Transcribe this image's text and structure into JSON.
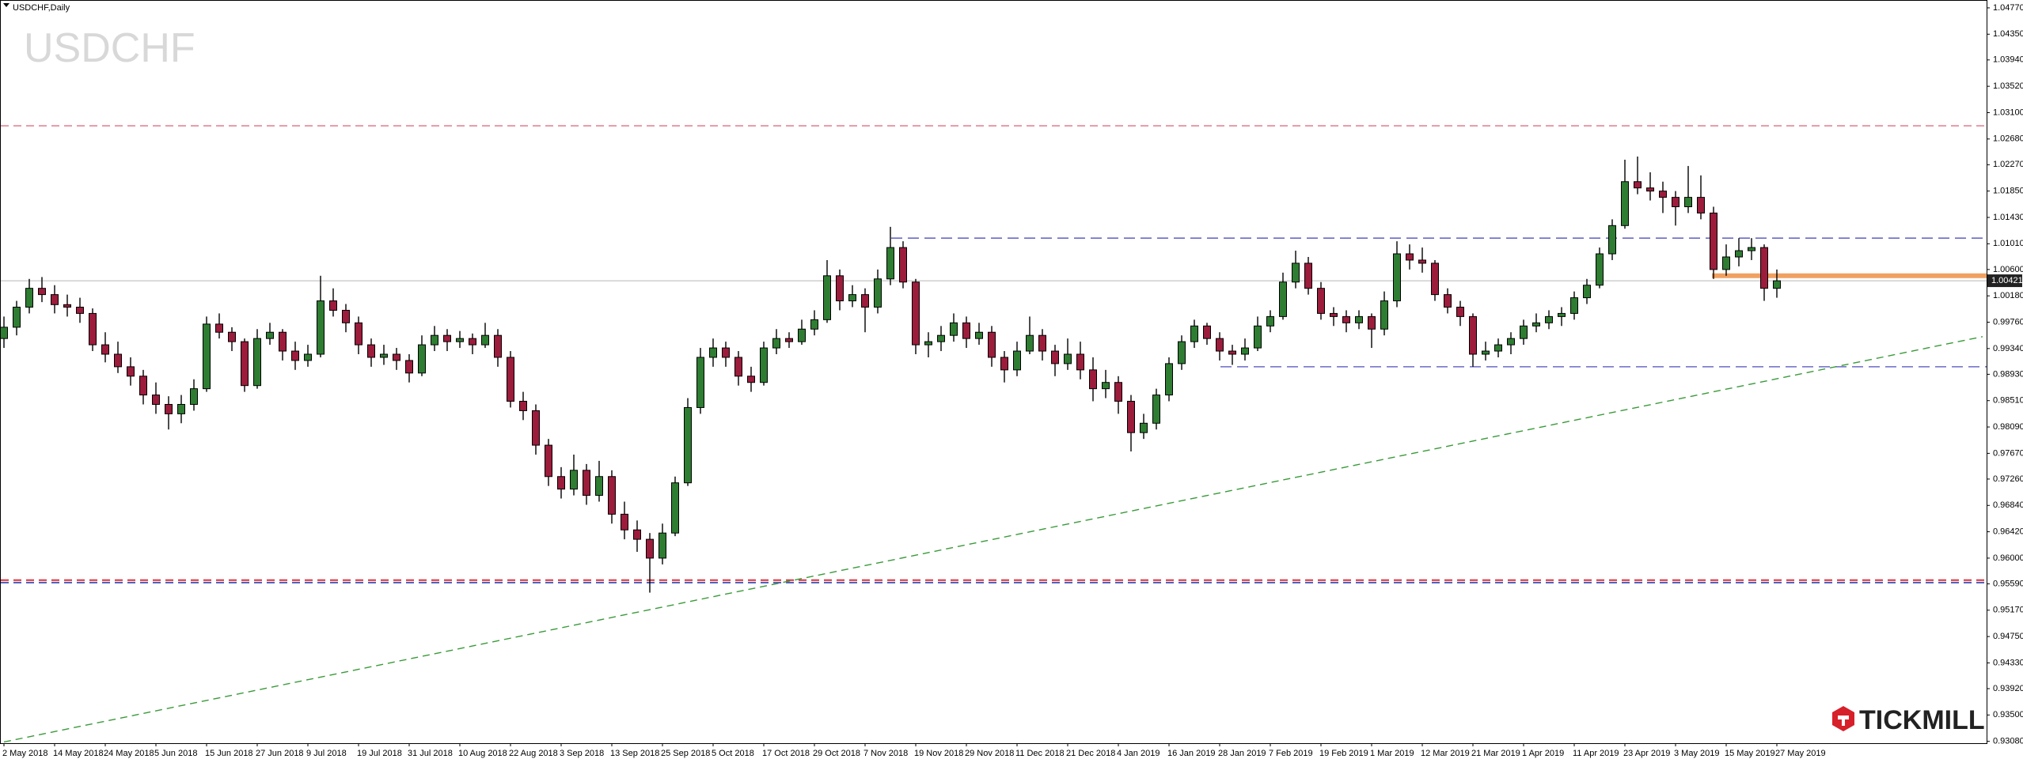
{
  "chart_data": {
    "type": "candlestick",
    "title": "USDCHF,Daily",
    "watermark": "USDCHF",
    "brand": "TICKMILL",
    "ylim": [
      0.93,
      1.0487
    ],
    "yticks": [
      {
        "value": 1.0477,
        "label": "1.04770"
      },
      {
        "value": 1.0435,
        "label": "1.04350"
      },
      {
        "value": 1.0394,
        "label": "1.03940"
      },
      {
        "value": 1.0352,
        "label": "1.03520"
      },
      {
        "value": 1.031,
        "label": "1.03100"
      },
      {
        "value": 1.0268,
        "label": "1.02680"
      },
      {
        "value": 1.0227,
        "label": "1.02270"
      },
      {
        "value": 1.0185,
        "label": "1.01850"
      },
      {
        "value": 1.0143,
        "label": "1.01430"
      },
      {
        "value": 1.0101,
        "label": "1.01010"
      },
      {
        "value": 1.006,
        "label": "1.00600"
      },
      {
        "value": 1.0018,
        "label": "1.00180"
      },
      {
        "value": 0.9976,
        "label": "0.99760"
      },
      {
        "value": 0.9934,
        "label": "0.99340"
      },
      {
        "value": 0.9893,
        "label": "0.98930"
      },
      {
        "value": 0.9851,
        "label": "0.98510"
      },
      {
        "value": 0.9809,
        "label": "0.98090"
      },
      {
        "value": 0.9767,
        "label": "0.97670"
      },
      {
        "value": 0.9726,
        "label": "0.97260"
      },
      {
        "value": 0.9684,
        "label": "0.96840"
      },
      {
        "value": 0.9642,
        "label": "0.96420"
      },
      {
        "value": 0.96,
        "label": "0.96000"
      },
      {
        "value": 0.9559,
        "label": "0.95590"
      },
      {
        "value": 0.9517,
        "label": "0.95170"
      },
      {
        "value": 0.9475,
        "label": "0.94750"
      },
      {
        "value": 0.9433,
        "label": "0.94330"
      },
      {
        "value": 0.9392,
        "label": "0.93920"
      },
      {
        "value": 0.935,
        "label": "0.93500"
      },
      {
        "value": 0.9308,
        "label": "0.93080"
      }
    ],
    "x_labels": [
      "2 May 2018",
      "14 May 2018",
      "24 May 2018",
      "5 Jun 2018",
      "15 Jun 2018",
      "27 Jun 2018",
      "9 Jul 2018",
      "19 Jul 2018",
      "31 Jul 2018",
      "10 Aug 2018",
      "22 Aug 2018",
      "3 Sep 2018",
      "13 Sep 2018",
      "25 Sep 2018",
      "5 Oct 2018",
      "17 Oct 2018",
      "29 Oct 2018",
      "7 Nov 2018",
      "19 Nov 2018",
      "29 Nov 2018",
      "11 Dec 2018",
      "21 Dec 2018",
      "4 Jan 2019",
      "16 Jan 2019",
      "28 Jan 2019",
      "7 Feb 2019",
      "19 Feb 2019",
      "1 Mar 2019",
      "12 Mar 2019",
      "21 Mar 2019",
      "1 Apr 2019",
      "11 Apr 2019",
      "23 Apr 2019",
      "3 May 2019",
      "15 May 2019",
      "27 May 2019"
    ],
    "bull_color": "#2e7d32",
    "bear_color": "#9c1c3c",
    "last_price": 1.00421,
    "levels": [
      {
        "value": 1.0289,
        "color": "#e07a8c"
      },
      {
        "value": 0.9565,
        "color": "#e0303a"
      },
      {
        "value": 0.9561,
        "color": "#4a5ab8"
      },
      {
        "value": 1.011,
        "color": "#6a6ac8"
      },
      {
        "value": 0.9905,
        "color": "#6a6ac8"
      },
      {
        "value": 1.005,
        "color": "#f0a060"
      }
    ],
    "trendline": {
      "values": [
        0.9307,
        0.9953
      ],
      "color": "#3a9a3a"
    },
    "candles": [
      [
        0.995,
        0.9985,
        0.9935,
        0.9968
      ],
      [
        0.9968,
        1.001,
        0.9955,
        1.0
      ],
      [
        1.0,
        1.0045,
        0.999,
        1.003
      ],
      [
        1.003,
        1.0048,
        1.0008,
        1.002
      ],
      [
        1.002,
        1.0035,
        0.999,
        1.0004
      ],
      [
        1.0004,
        1.002,
        0.9985,
        1.0
      ],
      [
        1.0,
        1.0015,
        0.9975,
        0.999
      ],
      [
        0.999,
        0.9998,
        0.993,
        0.994
      ],
      [
        0.994,
        0.996,
        0.9912,
        0.9925
      ],
      [
        0.9925,
        0.9945,
        0.9895,
        0.9905
      ],
      [
        0.9905,
        0.992,
        0.9875,
        0.989
      ],
      [
        0.989,
        0.99,
        0.9845,
        0.986
      ],
      [
        0.986,
        0.988,
        0.983,
        0.9845
      ],
      [
        0.9845,
        0.9858,
        0.9805,
        0.983
      ],
      [
        0.983,
        0.986,
        0.9815,
        0.9845
      ],
      [
        0.9845,
        0.9885,
        0.9835,
        0.987
      ],
      [
        0.987,
        0.9985,
        0.9865,
        0.9973
      ],
      [
        0.9973,
        0.999,
        0.995,
        0.996
      ],
      [
        0.996,
        0.9968,
        0.993,
        0.9945
      ],
      [
        0.9945,
        0.995,
        0.9865,
        0.9875
      ],
      [
        0.9875,
        0.9965,
        0.987,
        0.995
      ],
      [
        0.995,
        0.9975,
        0.994,
        0.996
      ],
      [
        0.996,
        0.9965,
        0.9915,
        0.993
      ],
      [
        0.993,
        0.9945,
        0.99,
        0.9915
      ],
      [
        0.9915,
        0.994,
        0.9905,
        0.9925
      ],
      [
        0.9925,
        1.005,
        0.992,
        1.001
      ],
      [
        1.001,
        1.003,
        0.9985,
        0.9995
      ],
      [
        0.9995,
        1.0005,
        0.996,
        0.9975
      ],
      [
        0.9975,
        0.9985,
        0.9925,
        0.994
      ],
      [
        0.994,
        0.995,
        0.9905,
        0.992
      ],
      [
        0.992,
        0.994,
        0.9908,
        0.9925
      ],
      [
        0.9925,
        0.9935,
        0.99,
        0.9915
      ],
      [
        0.9915,
        0.9925,
        0.988,
        0.9895
      ],
      [
        0.9895,
        0.9955,
        0.989,
        0.994
      ],
      [
        0.994,
        0.997,
        0.993,
        0.9955
      ],
      [
        0.9955,
        0.9965,
        0.993,
        0.9945
      ],
      [
        0.9945,
        0.9962,
        0.9935,
        0.995
      ],
      [
        0.995,
        0.9958,
        0.9925,
        0.994
      ],
      [
        0.994,
        0.9975,
        0.9935,
        0.9955
      ],
      [
        0.9955,
        0.9965,
        0.9905,
        0.992
      ],
      [
        0.992,
        0.993,
        0.984,
        0.985
      ],
      [
        0.985,
        0.9865,
        0.982,
        0.9835
      ],
      [
        0.9835,
        0.9845,
        0.9765,
        0.978
      ],
      [
        0.978,
        0.979,
        0.9715,
        0.973
      ],
      [
        0.973,
        0.9745,
        0.9695,
        0.971
      ],
      [
        0.971,
        0.9765,
        0.97,
        0.974
      ],
      [
        0.974,
        0.975,
        0.9685,
        0.97
      ],
      [
        0.97,
        0.9755,
        0.969,
        0.973
      ],
      [
        0.973,
        0.974,
        0.9655,
        0.967
      ],
      [
        0.967,
        0.969,
        0.963,
        0.9645
      ],
      [
        0.9645,
        0.966,
        0.961,
        0.963
      ],
      [
        0.963,
        0.964,
        0.9545,
        0.96
      ],
      [
        0.96,
        0.9655,
        0.959,
        0.964
      ],
      [
        0.964,
        0.973,
        0.9635,
        0.972
      ],
      [
        0.972,
        0.9855,
        0.9715,
        0.984
      ],
      [
        0.984,
        0.9935,
        0.983,
        0.992
      ],
      [
        0.992,
        0.995,
        0.9905,
        0.9935
      ],
      [
        0.9935,
        0.9945,
        0.9905,
        0.992
      ],
      [
        0.992,
        0.993,
        0.9875,
        0.989
      ],
      [
        0.989,
        0.9905,
        0.9865,
        0.988
      ],
      [
        0.988,
        0.9945,
        0.9875,
        0.9935
      ],
      [
        0.9935,
        0.9965,
        0.9925,
        0.995
      ],
      [
        0.995,
        0.996,
        0.9935,
        0.9945
      ],
      [
        0.9945,
        0.998,
        0.994,
        0.9965
      ],
      [
        0.9965,
        0.9995,
        0.9955,
        0.998
      ],
      [
        0.998,
        1.0075,
        0.9975,
        1.005
      ],
      [
        1.005,
        1.006,
        0.9995,
        1.001
      ],
      [
        1.001,
        1.0035,
        1.0,
        1.002
      ],
      [
        1.002,
        1.003,
        0.996,
        1.0
      ],
      [
        1.0,
        1.006,
        0.999,
        1.0045
      ],
      [
        1.0045,
        1.0128,
        1.0035,
        1.0095
      ],
      [
        1.0095,
        1.0105,
        1.003,
        1.004
      ],
      [
        1.004,
        1.0045,
        0.9925,
        0.994
      ],
      [
        0.994,
        0.996,
        0.992,
        0.9945
      ],
      [
        0.9945,
        0.997,
        0.993,
        0.9955
      ],
      [
        0.9955,
        0.999,
        0.9945,
        0.9975
      ],
      [
        0.9975,
        0.9985,
        0.9935,
        0.995
      ],
      [
        0.995,
        0.9975,
        0.994,
        0.996
      ],
      [
        0.996,
        0.997,
        0.9905,
        0.992
      ],
      [
        0.992,
        0.993,
        0.988,
        0.99
      ],
      [
        0.99,
        0.9945,
        0.989,
        0.993
      ],
      [
        0.993,
        0.9985,
        0.9925,
        0.9955
      ],
      [
        0.9955,
        0.9965,
        0.9915,
        0.993
      ],
      [
        0.993,
        0.994,
        0.989,
        0.991
      ],
      [
        0.991,
        0.995,
        0.99,
        0.9925
      ],
      [
        0.9925,
        0.9945,
        0.9885,
        0.99
      ],
      [
        0.99,
        0.992,
        0.985,
        0.987
      ],
      [
        0.987,
        0.99,
        0.9855,
        0.988
      ],
      [
        0.988,
        0.989,
        0.983,
        0.985
      ],
      [
        0.985,
        0.986,
        0.977,
        0.98
      ],
      [
        0.98,
        0.983,
        0.979,
        0.9815
      ],
      [
        0.9815,
        0.987,
        0.9805,
        0.986
      ],
      [
        0.986,
        0.992,
        0.985,
        0.991
      ],
      [
        0.991,
        0.9955,
        0.99,
        0.9945
      ],
      [
        0.9945,
        0.998,
        0.9935,
        0.997
      ],
      [
        0.997,
        0.9975,
        0.994,
        0.995
      ],
      [
        0.995,
        0.996,
        0.9915,
        0.993
      ],
      [
        0.993,
        0.994,
        0.9908,
        0.9925
      ],
      [
        0.9925,
        0.995,
        0.9915,
        0.9935
      ],
      [
        0.9935,
        0.9985,
        0.993,
        0.997
      ],
      [
        0.997,
        0.9995,
        0.996,
        0.9985
      ],
      [
        0.9985,
        1.0055,
        0.998,
        1.004
      ],
      [
        1.004,
        1.009,
        1.003,
        1.007
      ],
      [
        1.007,
        1.008,
        1.002,
        1.003
      ],
      [
        1.003,
        1.004,
        0.998,
        0.999
      ],
      [
        0.999,
        1.0,
        0.997,
        0.9985
      ],
      [
        0.9985,
        0.9995,
        0.996,
        0.9975
      ],
      [
        0.9975,
        0.9995,
        0.9965,
        0.9985
      ],
      [
        0.9985,
        0.999,
        0.9935,
        0.9965
      ],
      [
        0.9965,
        1.0025,
        0.9955,
        1.001
      ],
      [
        1.001,
        1.0105,
        1.0,
        1.0085
      ],
      [
        1.0085,
        1.01,
        1.006,
        1.0075
      ],
      [
        1.0075,
        1.0095,
        1.0055,
        1.007
      ],
      [
        1.007,
        1.0075,
        1.001,
        1.002
      ],
      [
        1.002,
        1.003,
        0.999,
        1.0
      ],
      [
        1.0,
        1.001,
        0.997,
        0.9985
      ],
      [
        0.9985,
        0.999,
        0.9905,
        0.9925
      ],
      [
        0.9925,
        0.9945,
        0.9915,
        0.993
      ],
      [
        0.993,
        0.995,
        0.992,
        0.994
      ],
      [
        0.994,
        0.996,
        0.9925,
        0.995
      ],
      [
        0.995,
        0.998,
        0.994,
        0.997
      ],
      [
        0.997,
        0.999,
        0.996,
        0.9975
      ],
      [
        0.9975,
        0.9995,
        0.9965,
        0.9985
      ],
      [
        0.9985,
        1.0,
        0.997,
        0.999
      ],
      [
        0.999,
        1.0025,
        0.998,
        1.0015
      ],
      [
        1.0015,
        1.0045,
        1.0005,
        1.0035
      ],
      [
        1.0035,
        1.0095,
        1.003,
        1.0085
      ],
      [
        1.0085,
        1.014,
        1.0075,
        1.013
      ],
      [
        1.013,
        1.0235,
        1.0125,
        1.02
      ],
      [
        1.02,
        1.024,
        1.018,
        1.019
      ],
      [
        1.019,
        1.0215,
        1.017,
        1.0185
      ],
      [
        1.0185,
        1.02,
        1.015,
        1.0175
      ],
      [
        1.0175,
        1.0185,
        1.013,
        1.016
      ],
      [
        1.016,
        1.0225,
        1.015,
        1.0175
      ],
      [
        1.0175,
        1.021,
        1.014,
        1.015
      ],
      [
        1.015,
        1.016,
        1.0045,
        1.006
      ],
      [
        1.006,
        1.01,
        1.005,
        1.008
      ],
      [
        1.008,
        1.011,
        1.0065,
        1.009
      ],
      [
        1.009,
        1.011,
        1.0075,
        1.0095
      ],
      [
        1.0095,
        1.01,
        1.001,
        1.003
      ],
      [
        1.003,
        1.006,
        1.0015,
        1.0042
      ]
    ]
  }
}
